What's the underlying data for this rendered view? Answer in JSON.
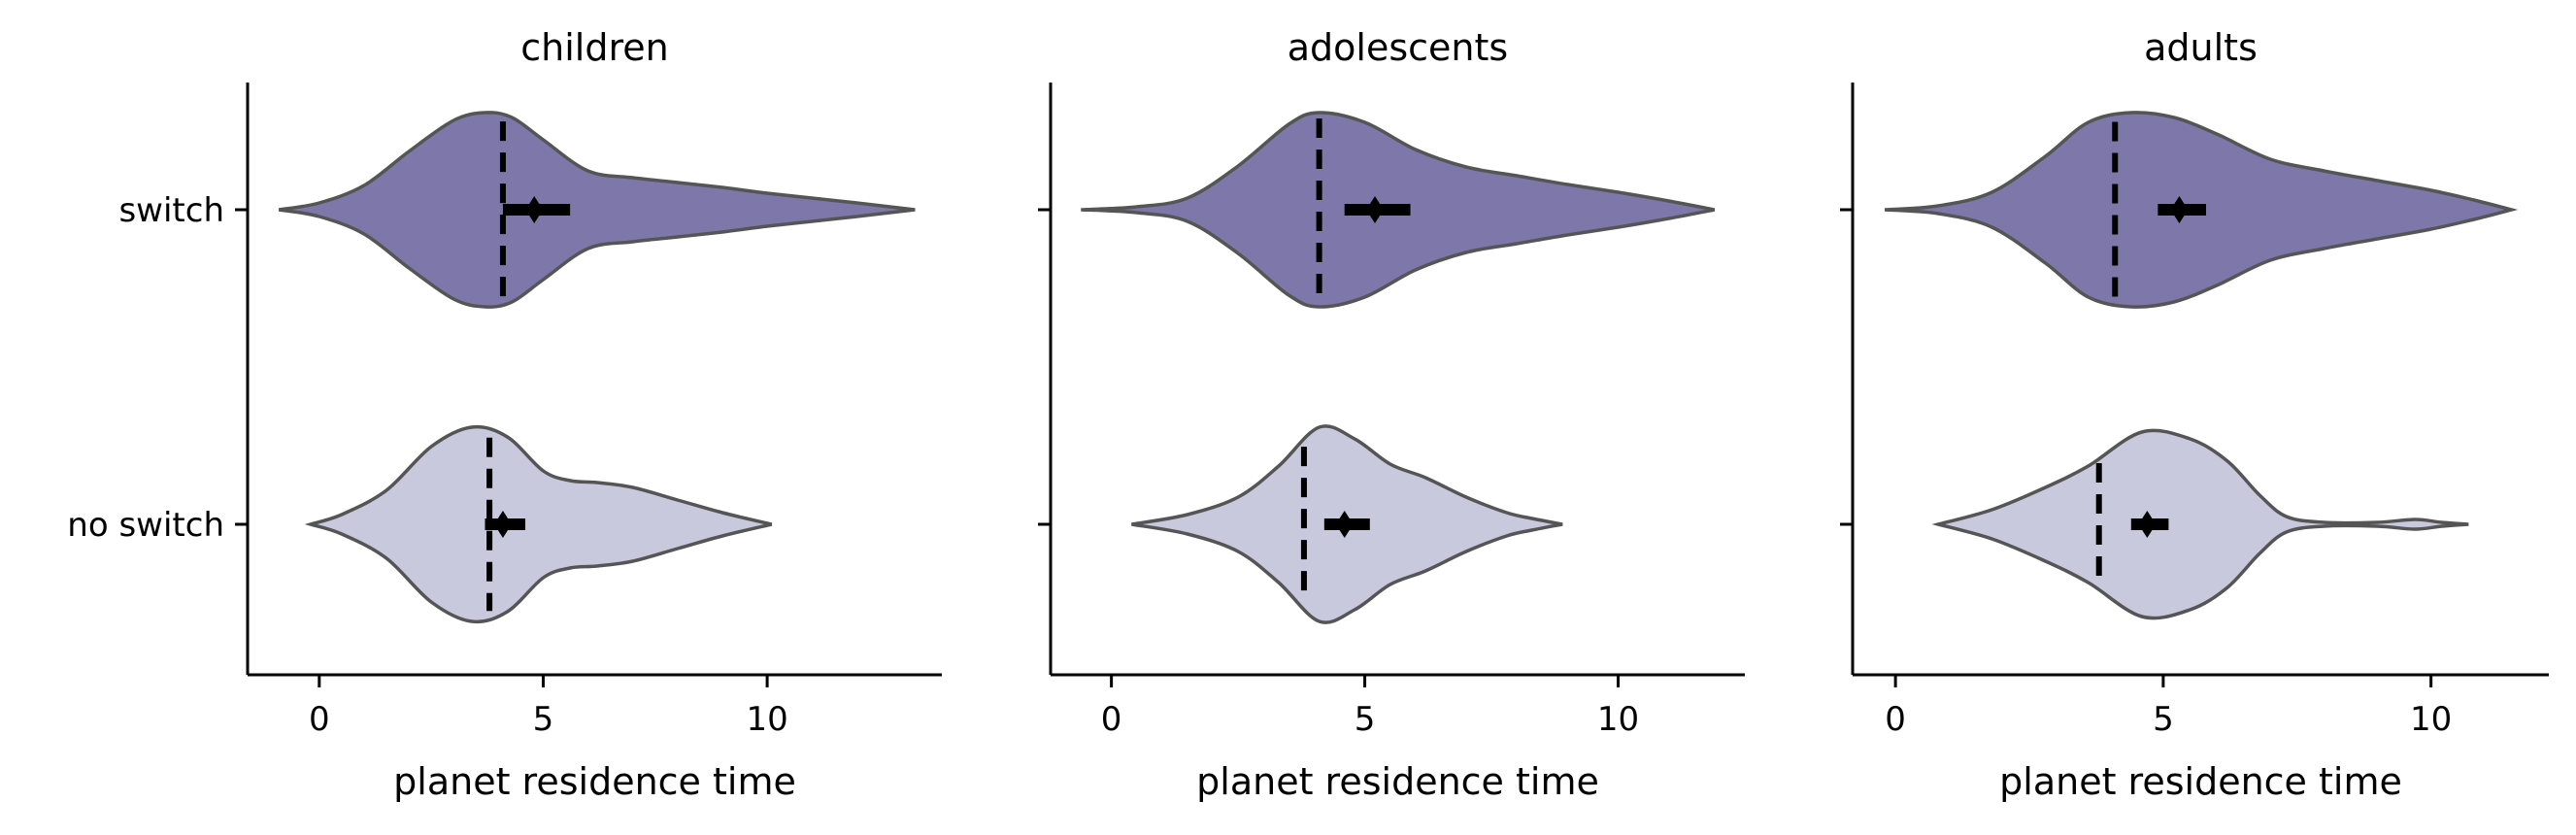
{
  "chart_data": [
    {
      "type": "violin",
      "title": "children",
      "xlabel": "planet residence time",
      "ylabel": "",
      "xlim": [
        -1.6,
        13.9
      ],
      "xticks": [
        0,
        5,
        10
      ],
      "categories": [
        "switch",
        "no switch"
      ],
      "grid": false,
      "series": [
        {
          "category": "switch",
          "color": "#7e77a9",
          "median": 4.1,
          "mean": 4.8,
          "ci": [
            4.1,
            5.6
          ],
          "density_x": [
            -0.9,
            0.0,
            1.0,
            2.0,
            3.0,
            3.7,
            4.3,
            5.0,
            6.0,
            7.0,
            8.0,
            9.0,
            10.0,
            11.0,
            12.0,
            13.3
          ],
          "density": [
            0.0,
            0.07,
            0.25,
            0.6,
            0.92,
            1.0,
            0.95,
            0.72,
            0.4,
            0.33,
            0.28,
            0.23,
            0.17,
            0.12,
            0.07,
            0.0
          ]
        },
        {
          "category": "no switch",
          "color": "#c9c9de",
          "median": 3.8,
          "mean": 4.1,
          "ci": [
            3.7,
            4.6
          ],
          "density_x": [
            -0.2,
            0.5,
            1.5,
            2.5,
            3.4,
            4.2,
            5.0,
            5.6,
            6.2,
            7.0,
            8.0,
            9.0,
            10.1
          ],
          "density": [
            0.0,
            0.1,
            0.35,
            0.8,
            1.0,
            0.9,
            0.55,
            0.45,
            0.43,
            0.38,
            0.25,
            0.12,
            0.0
          ]
        }
      ]
    },
    {
      "type": "violin",
      "title": "adolescents",
      "xlabel": "planet residence time",
      "ylabel": "",
      "xlim": [
        -1.2,
        12.5
      ],
      "xticks": [
        0,
        5,
        10
      ],
      "categories": [
        "switch",
        "no switch"
      ],
      "grid": false,
      "series": [
        {
          "category": "switch",
          "color": "#7e77a9",
          "median": 4.1,
          "mean": 5.2,
          "ci": [
            4.6,
            5.9
          ],
          "density_x": [
            -0.6,
            0.5,
            1.5,
            2.5,
            3.5,
            4.1,
            5.0,
            6.0,
            7.0,
            8.0,
            9.0,
            10.0,
            11.0,
            11.9
          ],
          "density": [
            0.0,
            0.03,
            0.12,
            0.45,
            0.88,
            1.0,
            0.9,
            0.62,
            0.44,
            0.35,
            0.26,
            0.18,
            0.09,
            0.0
          ]
        },
        {
          "category": "no switch",
          "color": "#c9c9de",
          "median": 3.8,
          "mean": 4.6,
          "ci": [
            4.2,
            5.1
          ],
          "density_x": [
            0.4,
            1.5,
            2.5,
            3.3,
            4.1,
            4.8,
            5.5,
            6.2,
            7.0,
            7.8,
            8.3,
            8.9
          ],
          "density": [
            0.0,
            0.1,
            0.28,
            0.6,
            1.0,
            0.88,
            0.62,
            0.48,
            0.28,
            0.12,
            0.06,
            0.0
          ]
        }
      ]
    },
    {
      "type": "violin",
      "title": "adults",
      "xlabel": "planet residence time",
      "ylabel": "",
      "xlim": [
        -0.8,
        12.2
      ],
      "xticks": [
        0,
        5,
        10
      ],
      "categories": [
        "switch",
        "no switch"
      ],
      "grid": false,
      "series": [
        {
          "category": "switch",
          "color": "#7e77a9",
          "median": 4.1,
          "mean": 5.3,
          "ci": [
            4.9,
            5.8
          ],
          "density_x": [
            -0.2,
            0.8,
            1.8,
            2.8,
            3.6,
            4.4,
            5.2,
            6.0,
            7.0,
            8.0,
            9.0,
            10.0,
            10.8,
            11.5
          ],
          "density": [
            0.0,
            0.04,
            0.18,
            0.55,
            0.9,
            1.0,
            0.95,
            0.78,
            0.52,
            0.4,
            0.3,
            0.2,
            0.1,
            0.0
          ]
        },
        {
          "category": "no switch",
          "color": "#c9c9de",
          "median": 3.8,
          "mean": 4.7,
          "ci": [
            4.4,
            5.1
          ],
          "density_x": [
            0.8,
            1.8,
            2.8,
            3.6,
            4.6,
            5.5,
            6.2,
            6.8,
            7.3,
            8.0,
            9.0,
            9.7,
            10.2,
            10.7
          ],
          "density": [
            0.0,
            0.15,
            0.38,
            0.6,
            0.95,
            0.88,
            0.65,
            0.3,
            0.08,
            0.02,
            0.02,
            0.05,
            0.02,
            0.0
          ]
        }
      ]
    }
  ]
}
